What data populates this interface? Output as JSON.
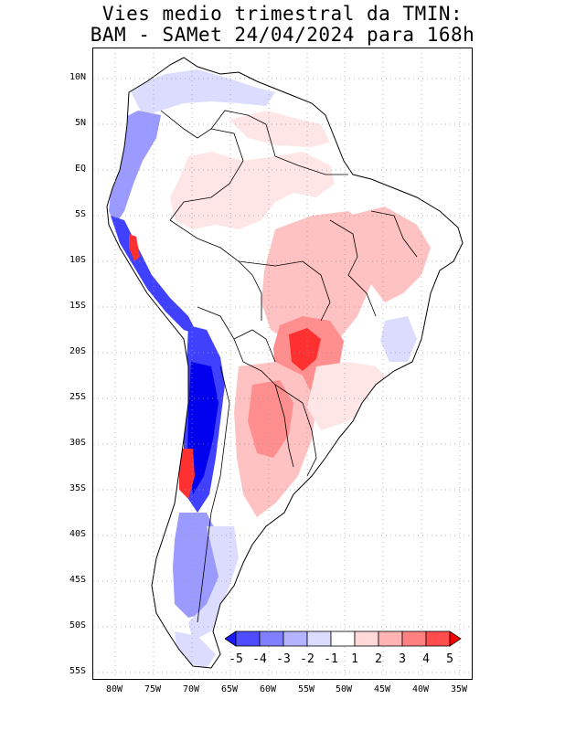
{
  "title_line1": "Vies medio trimestral da TMIN:",
  "title_line2": "BAM - SAMet 24/04/2024  para 168h",
  "lat_labels": [
    "10N",
    "5N",
    "EQ",
    "5S",
    "10S",
    "15S",
    "20S",
    "25S",
    "30S",
    "35S",
    "40S",
    "45S",
    "50S",
    "55S"
  ],
  "lon_labels": [
    "80W",
    "75W",
    "70W",
    "65W",
    "60W",
    "55W",
    "50W",
    "45W",
    "40W",
    "35W"
  ],
  "colorbar": {
    "labels": [
      "-5",
      "-4",
      "-3",
      "-2",
      "-1",
      "1",
      "2",
      "3",
      "4",
      "5"
    ],
    "colors": [
      "#1a1aff",
      "#4d4dff",
      "#7f7fff",
      "#b3b3ff",
      "#dcdcff",
      "#ffffff",
      "#ffd9d9",
      "#ffb3b3",
      "#ff8080",
      "#ff4d4d",
      "#ff0000"
    ]
  },
  "map": {
    "land_outline": "#000000",
    "grid_color": "#999999",
    "bias_colors": {
      "neutral": "#ffffff",
      "warm_light": "#ffe6e6",
      "warm_mid": "#ffc2c2",
      "warm_strong": "#ff8f8f",
      "warm_max": "#ff3030",
      "cold_light": "#dcdcff",
      "cold_mid": "#9a9aff",
      "cold_strong": "#4040ff",
      "cold_max": "#0000ee"
    }
  }
}
